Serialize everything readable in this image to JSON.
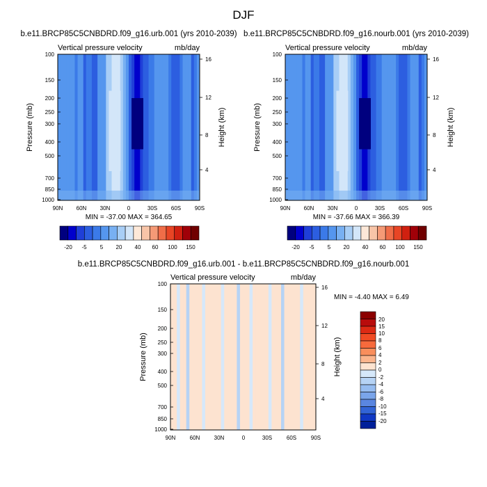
{
  "page_title": "DJF",
  "chart_data": [
    {
      "type": "heatmap",
      "id": "panel-urb",
      "title": "b.e11.BRCP85C5CNBDRD.f09_g16.urb.001 (yrs 2010-2039)",
      "left_subtitle": "Vertical pressure velocity",
      "right_subtitle": "mb/day",
      "ylabel": "Pressure (mb)",
      "y2label": "Height (km)",
      "xticks": [
        "90N",
        "60N",
        "30N",
        "0",
        "30S",
        "60S",
        "90S"
      ],
      "yticks": [
        "100",
        "150",
        "200",
        "250",
        "300",
        "400",
        "500",
        "700",
        "850",
        "1000"
      ],
      "y2ticks": [
        "16",
        "12",
        "8",
        "4"
      ],
      "min_max": "MIN = -37.00   MAX = 364.65",
      "colorbar_labels": [
        "-20",
        "-5",
        "5",
        "20",
        "40",
        "60",
        "100",
        "150"
      ],
      "columns": [
        -2,
        -2,
        -3,
        -3,
        -2,
        -2,
        -4,
        -3,
        -3,
        -5,
        -4,
        -4,
        -5,
        -5,
        -3,
        -3,
        -2,
        0,
        1,
        3,
        3,
        2,
        0,
        -1,
        -3,
        -5,
        -8,
        -12,
        -12,
        -9,
        -6,
        -5,
        -4,
        -4,
        -3,
        -3,
        -3,
        -3,
        -2,
        -4,
        -5,
        -6,
        -5,
        -4,
        -3,
        -2,
        -3,
        -5,
        -4,
        -2
      ],
      "colors": [
        "#00007f",
        "#0000cc",
        "#1f3fd8",
        "#2c5ee0",
        "#3b7ae8",
        "#5596ee",
        "#78b0f2",
        "#a8cef6",
        "#d3e6f9",
        "#fde8d8",
        "#f8c5a8",
        "#f59a76",
        "#f06d48",
        "#e84525",
        "#d02010",
        "#a00008",
        "#700000"
      ]
    },
    {
      "type": "heatmap",
      "id": "panel-nourb",
      "title": "b.e11.BRCP85C5CNBDRD.f09_g16.nourb.001 (yrs 2010-2039)",
      "left_subtitle": "Vertical pressure velocity",
      "right_subtitle": "mb/day",
      "ylabel": "Pressure (mb)",
      "y2label": "Height (km)",
      "xticks": [
        "90N",
        "60N",
        "30N",
        "0",
        "30S",
        "60S",
        "90S"
      ],
      "yticks": [
        "100",
        "150",
        "200",
        "250",
        "300",
        "400",
        "500",
        "700",
        "850",
        "1000"
      ],
      "y2ticks": [
        "16",
        "12",
        "8",
        "4"
      ],
      "min_max": "MIN = -37.66   MAX = 366.39",
      "colorbar_labels": [
        "-20",
        "-5",
        "5",
        "20",
        "40",
        "60",
        "100",
        "150"
      ],
      "columns": [
        -2,
        -2,
        -3,
        -3,
        -2,
        -2,
        -4,
        -3,
        -3,
        -5,
        -4,
        -4,
        -5,
        -5,
        -3,
        -3,
        -2,
        0,
        1,
        3,
        3,
        2,
        0,
        -1,
        -3,
        -5,
        -8,
        -12,
        -12,
        -9,
        -6,
        -5,
        -4,
        -4,
        -3,
        -3,
        -3,
        -3,
        -2,
        -4,
        -5,
        -6,
        -5,
        -4,
        -3,
        -2,
        -3,
        -5,
        -4,
        -2
      ],
      "colors": [
        "#00007f",
        "#0000cc",
        "#1f3fd8",
        "#2c5ee0",
        "#3b7ae8",
        "#5596ee",
        "#78b0f2",
        "#a8cef6",
        "#d3e6f9",
        "#fde8d8",
        "#f8c5a8",
        "#f59a76",
        "#f06d48",
        "#e84525",
        "#d02010",
        "#a00008",
        "#700000"
      ]
    },
    {
      "type": "heatmap",
      "id": "panel-diff",
      "title": "b.e11.BRCP85C5CNBDRD.f09_g16.urb.001 - b.e11.BRCP85C5CNBDRD.f09_g16.nourb.001",
      "left_subtitle": "Vertical pressure velocity",
      "right_subtitle": "mb/day",
      "ylabel": "Pressure (mb)",
      "y2label": "Height (km)",
      "xticks": [
        "90N",
        "60N",
        "30N",
        "0",
        "30S",
        "60S",
        "90S"
      ],
      "yticks": [
        "100",
        "150",
        "200",
        "250",
        "300",
        "400",
        "500",
        "700",
        "850",
        "1000"
      ],
      "y2ticks": [
        "16",
        "12",
        "8",
        "4"
      ],
      "min_max": "MIN =  -4.40   MAX =   6.49",
      "colorbar_labels": [
        "20",
        "15",
        "10",
        "8",
        "6",
        "4",
        "2",
        "0",
        "-2",
        "-4",
        "-6",
        "-8",
        "-10",
        "-15",
        "-20"
      ],
      "columns": [
        1,
        1,
        0,
        1,
        1,
        -1,
        1,
        1,
        1,
        1,
        0,
        1,
        1,
        1,
        1,
        1,
        0,
        1,
        1,
        1,
        1,
        -1,
        1,
        1,
        1,
        0,
        1,
        1,
        1,
        1,
        1,
        0,
        1,
        1,
        1,
        -1,
        1,
        1,
        1,
        1,
        1,
        0,
        1,
        1,
        1,
        1
      ],
      "colors": [
        "#8c0000",
        "#b80c0c",
        "#dc2a14",
        "#f04b24",
        "#f76a3c",
        "#f98e5c",
        "#fbb48c",
        "#fde3d0",
        "#d6e8fa",
        "#b6d3f5",
        "#96bcf0",
        "#7aa5ea",
        "#5a86e0",
        "#3264d6",
        "#1038c4",
        "#00209a"
      ]
    }
  ]
}
